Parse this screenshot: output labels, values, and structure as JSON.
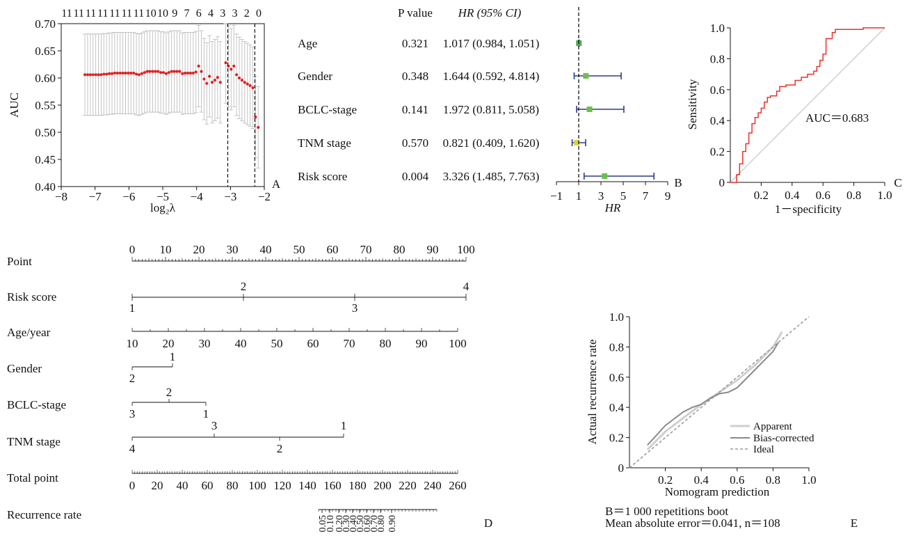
{
  "chart_data": [
    {
      "panel": "A",
      "type": "scatter",
      "xlabel": "log₂λ",
      "ylabel": "AUC",
      "xlim": [
        -8,
        -2
      ],
      "ylim": [
        0.4,
        0.7
      ],
      "x_ticks": [
        "−8",
        "−7",
        "−6",
        "−5",
        "−4",
        "−3",
        "−2"
      ],
      "y_ticks": [
        "0.40",
        "0.45",
        "0.50",
        "0.55",
        "0.60",
        "0.65",
        "0.70"
      ],
      "top_ticks": [
        "11",
        "11",
        "11",
        "11",
        "11",
        "11",
        "11",
        "10",
        "10",
        "9",
        "7",
        "6",
        "4",
        "3",
        "3",
        "2",
        "0"
      ],
      "vlines": [
        -3.08,
        -2.28
      ],
      "points": [
        [
          -7.3,
          0.606
        ],
        [
          -7.22,
          0.606
        ],
        [
          -7.14,
          0.606
        ],
        [
          -7.06,
          0.606
        ],
        [
          -6.98,
          0.606
        ],
        [
          -6.9,
          0.606
        ],
        [
          -6.82,
          0.606
        ],
        [
          -6.74,
          0.607
        ],
        [
          -6.66,
          0.607
        ],
        [
          -6.58,
          0.608
        ],
        [
          -6.5,
          0.608
        ],
        [
          -6.42,
          0.609
        ],
        [
          -6.34,
          0.609
        ],
        [
          -6.26,
          0.609
        ],
        [
          -6.18,
          0.609
        ],
        [
          -6.1,
          0.609
        ],
        [
          -6.02,
          0.609
        ],
        [
          -5.94,
          0.609
        ],
        [
          -5.86,
          0.609
        ],
        [
          -5.78,
          0.607
        ],
        [
          -5.7,
          0.606
        ],
        [
          -5.62,
          0.608
        ],
        [
          -5.54,
          0.61
        ],
        [
          -5.46,
          0.612
        ],
        [
          -5.38,
          0.612
        ],
        [
          -5.3,
          0.612
        ],
        [
          -5.22,
          0.612
        ],
        [
          -5.14,
          0.612
        ],
        [
          -5.06,
          0.61
        ],
        [
          -4.98,
          0.61
        ],
        [
          -4.9,
          0.608
        ],
        [
          -4.82,
          0.61
        ],
        [
          -4.74,
          0.612
        ],
        [
          -4.66,
          0.612
        ],
        [
          -4.58,
          0.612
        ],
        [
          -4.5,
          0.612
        ],
        [
          -4.42,
          0.608
        ],
        [
          -4.34,
          0.609
        ],
        [
          -4.26,
          0.609
        ],
        [
          -4.18,
          0.609
        ],
        [
          -4.1,
          0.609
        ],
        [
          -4.02,
          0.611
        ],
        [
          -3.94,
          0.622
        ],
        [
          -3.86,
          0.612
        ],
        [
          -3.78,
          0.598
        ],
        [
          -3.7,
          0.59
        ],
        [
          -3.62,
          0.603
        ],
        [
          -3.54,
          0.592
        ],
        [
          -3.46,
          0.596
        ],
        [
          -3.38,
          0.601
        ],
        [
          -3.3,
          0.592
        ],
        [
          -3.14,
          0.628
        ],
        [
          -3.06,
          0.622
        ],
        [
          -2.98,
          0.616
        ],
        [
          -2.9,
          0.622
        ],
        [
          -2.82,
          0.606
        ],
        [
          -2.74,
          0.6
        ],
        [
          -2.66,
          0.596
        ],
        [
          -2.58,
          0.592
        ],
        [
          -2.5,
          0.589
        ],
        [
          -2.42,
          0.586
        ],
        [
          -2.34,
          0.582
        ],
        [
          -2.26,
          0.528
        ],
        [
          -2.18,
          0.509
        ]
      ],
      "error_halfwidth": 0.075,
      "panel_label": "A"
    },
    {
      "panel": "B",
      "type": "forest",
      "header": [
        "P value",
        "HR (95% CI)"
      ],
      "rows": [
        {
          "label": "Age",
          "p": "0.321",
          "hr_text": "1.017 (0.984, 1.051)",
          "hr": 1.017,
          "lo": 0.984,
          "hi": 1.051,
          "color": "#4caf50"
        },
        {
          "label": "Gender",
          "p": "0.348",
          "hr_text": "1.644 (0.592, 4.814)",
          "hr": 1.644,
          "lo": 0.592,
          "hi": 4.814,
          "color": "#6dbf4a"
        },
        {
          "label": "BCLC-stage",
          "p": "0.141",
          "hr_text": "1.972 (0.811, 5.058)",
          "hr": 1.972,
          "lo": 0.811,
          "hi": 5.058,
          "color": "#6dbf4a"
        },
        {
          "label": "TNM stage",
          "p": "0.570",
          "hr_text": "0.821 (0.409, 1.620)",
          "hr": 0.821,
          "lo": 0.409,
          "hi": 1.62,
          "color": "#d6d34a"
        },
        {
          "label": "Risk score",
          "p": "0.004",
          "hr_text": "3.326 (1.485, 7.763)",
          "hr": 3.326,
          "lo": 1.485,
          "hi": 7.763,
          "color": "#6dbf4a"
        }
      ],
      "xlabel": "HR",
      "xlim": [
        -1,
        9
      ],
      "x_ticks": [
        "−1",
        "1",
        "3",
        "5",
        "7",
        "9"
      ],
      "ref_line": 1,
      "panel_label": "B"
    },
    {
      "panel": "C",
      "type": "line",
      "xlabel": "1－specificity",
      "ylabel": "Sensitivity",
      "xlim": [
        0,
        1
      ],
      "ylim": [
        0,
        1
      ],
      "x_ticks": [
        "0.2",
        "0.4",
        "0.6",
        "0.8",
        "1.0"
      ],
      "y_ticks": [
        "0",
        "0.2",
        "0.4",
        "0.6",
        "0.8",
        "1.0"
      ],
      "annotation": "AUC＝0.683",
      "roc": [
        [
          0,
          0
        ],
        [
          0.04,
          0
        ],
        [
          0.04,
          0.05
        ],
        [
          0.06,
          0.05
        ],
        [
          0.06,
          0.12
        ],
        [
          0.08,
          0.12
        ],
        [
          0.08,
          0.2
        ],
        [
          0.1,
          0.2
        ],
        [
          0.1,
          0.25
        ],
        [
          0.12,
          0.25
        ],
        [
          0.12,
          0.32
        ],
        [
          0.14,
          0.32
        ],
        [
          0.14,
          0.38
        ],
        [
          0.16,
          0.38
        ],
        [
          0.16,
          0.42
        ],
        [
          0.18,
          0.42
        ],
        [
          0.18,
          0.45
        ],
        [
          0.2,
          0.45
        ],
        [
          0.2,
          0.48
        ],
        [
          0.22,
          0.48
        ],
        [
          0.22,
          0.52
        ],
        [
          0.24,
          0.52
        ],
        [
          0.24,
          0.55
        ],
        [
          0.26,
          0.55
        ],
        [
          0.26,
          0.56
        ],
        [
          0.3,
          0.56
        ],
        [
          0.3,
          0.59
        ],
        [
          0.32,
          0.59
        ],
        [
          0.32,
          0.62
        ],
        [
          0.36,
          0.62
        ],
        [
          0.36,
          0.63
        ],
        [
          0.42,
          0.63
        ],
        [
          0.42,
          0.66
        ],
        [
          0.46,
          0.66
        ],
        [
          0.46,
          0.68
        ],
        [
          0.5,
          0.68
        ],
        [
          0.5,
          0.7
        ],
        [
          0.54,
          0.7
        ],
        [
          0.54,
          0.72
        ],
        [
          0.56,
          0.72
        ],
        [
          0.56,
          0.75
        ],
        [
          0.58,
          0.75
        ],
        [
          0.58,
          0.79
        ],
        [
          0.6,
          0.79
        ],
        [
          0.6,
          0.83
        ],
        [
          0.62,
          0.83
        ],
        [
          0.62,
          0.93
        ],
        [
          0.66,
          0.93
        ],
        [
          0.66,
          0.97
        ],
        [
          0.68,
          0.97
        ],
        [
          0.68,
          0.99
        ],
        [
          0.86,
          0.99
        ],
        [
          0.86,
          1.0
        ],
        [
          1.0,
          1.0
        ]
      ],
      "panel_label": "C"
    },
    {
      "panel": "D",
      "type": "nomogram",
      "rows": [
        {
          "label": "Point",
          "ticks": [
            "0",
            "10",
            "20",
            "30",
            "40",
            "50",
            "60",
            "70",
            "80",
            "90",
            "100"
          ]
        },
        {
          "label": "Risk score",
          "above": [
            "2",
            "4"
          ],
          "below": [
            "1",
            "3"
          ]
        },
        {
          "label": "Age/year",
          "ticks": [
            "10",
            "20",
            "30",
            "40",
            "50",
            "60",
            "70",
            "80",
            "90",
            "100"
          ]
        },
        {
          "label": "Gender",
          "above": [
            "1"
          ],
          "below": [
            "2"
          ]
        },
        {
          "label": "BCLC-stage",
          "above": [
            "2"
          ],
          "below": [
            "3",
            "1"
          ]
        },
        {
          "label": "TNM stage",
          "above": [
            "3",
            "1"
          ],
          "below": [
            "4",
            "2"
          ]
        },
        {
          "label": "Total point",
          "ticks": [
            "0",
            "20",
            "40",
            "60",
            "80",
            "100",
            "120",
            "140",
            "160",
            "180",
            "200",
            "220",
            "240",
            "260"
          ]
        },
        {
          "label": "Recurrence rate",
          "ticks": [
            "0.05",
            "0.10",
            "0.20",
            "0.30",
            "0.40",
            "0.50",
            "0.60",
            "0.70",
            "0.80",
            "0.90"
          ]
        }
      ],
      "panel_label": "D"
    },
    {
      "panel": "E",
      "type": "line",
      "xlabel": "Nomogram prediction",
      "ylabel": "Actual recurrence rate",
      "xlim": [
        0,
        1
      ],
      "ylim": [
        0,
        1
      ],
      "x_ticks": [
        "0.2",
        "0.4",
        "0.6",
        "0.8",
        "1.0"
      ],
      "y_ticks": [
        "0",
        "0.2",
        "0.4",
        "0.6",
        "0.8",
        "1.0"
      ],
      "series": [
        {
          "name": "Apparent",
          "color": "#cfcfcf",
          "x": [
            0.1,
            0.2,
            0.3,
            0.4,
            0.5,
            0.6,
            0.7,
            0.8,
            0.85
          ],
          "y": [
            0.12,
            0.24,
            0.33,
            0.42,
            0.5,
            0.58,
            0.68,
            0.8,
            0.9
          ]
        },
        {
          "name": "Bias-corrected",
          "color": "#8a8a8a",
          "x": [
            0.1,
            0.2,
            0.3,
            0.35,
            0.4,
            0.45,
            0.5,
            0.55,
            0.6,
            0.7,
            0.8,
            0.83
          ],
          "y": [
            0.15,
            0.28,
            0.37,
            0.4,
            0.42,
            0.46,
            0.49,
            0.5,
            0.53,
            0.65,
            0.77,
            0.83
          ]
        },
        {
          "name": "Ideal",
          "color": "#9a9a9a",
          "x": [
            0,
            1
          ],
          "y": [
            0,
            1
          ]
        }
      ],
      "caption_line1": "B＝1 000 repetitions boot",
      "caption_line2": "Mean absolute error＝0.041, n＝108",
      "panel_label": "E"
    }
  ]
}
